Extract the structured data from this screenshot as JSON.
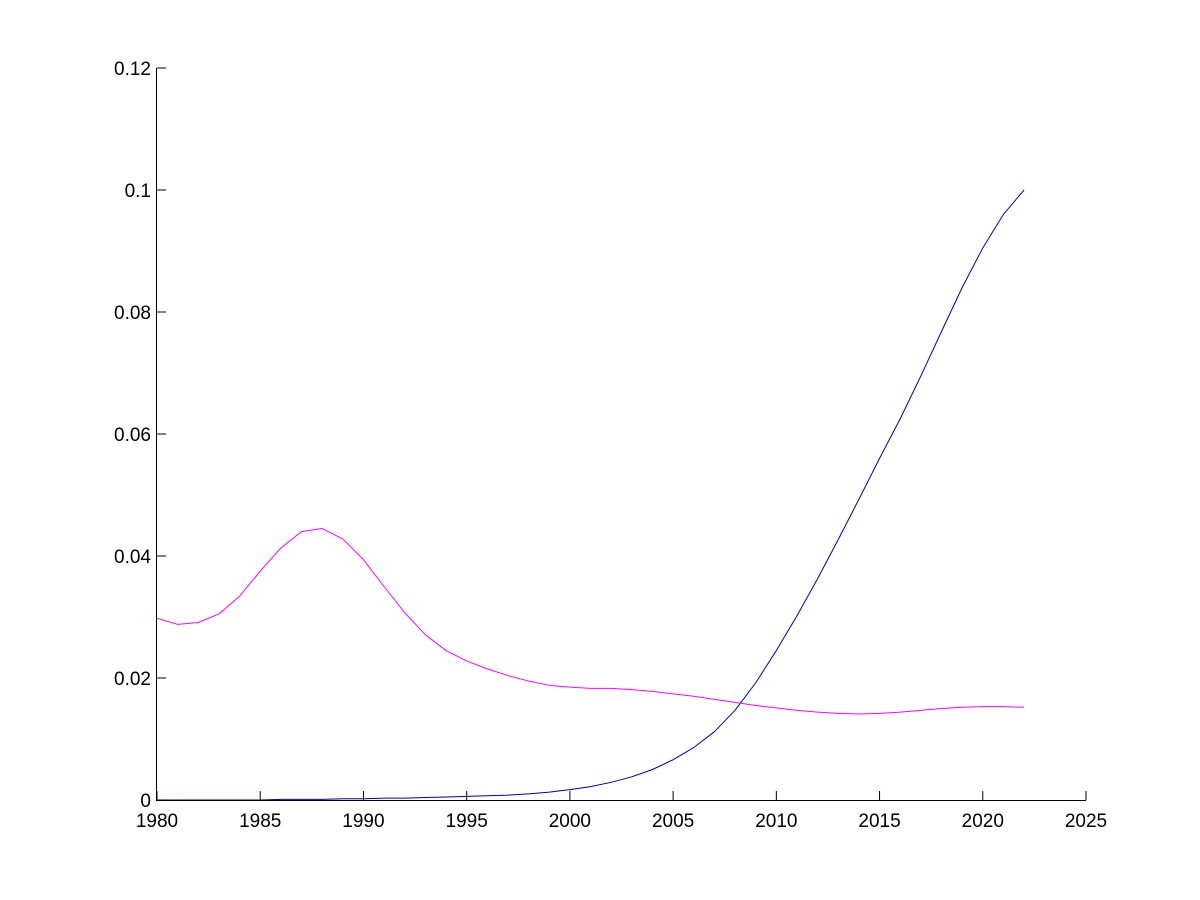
{
  "chart_data": {
    "type": "line",
    "title": "",
    "xlabel": "",
    "ylabel": "",
    "xlim": [
      1980,
      2025
    ],
    "ylim": [
      0,
      0.12
    ],
    "grid": false,
    "legend": false,
    "box": false,
    "x_ticks": [
      1980,
      1985,
      1990,
      1995,
      2000,
      2005,
      2010,
      2015,
      2020,
      2025
    ],
    "x_tick_labels": [
      "1980",
      "1985",
      "1990",
      "1995",
      "2000",
      "2005",
      "2010",
      "2015",
      "2020",
      "2025"
    ],
    "y_ticks": [
      0,
      0.02,
      0.04,
      0.06,
      0.08,
      0.1,
      0.12
    ],
    "y_tick_labels": [
      "0",
      "0.02",
      "0.04",
      "0.06",
      "0.08",
      "0.1",
      "0.12"
    ],
    "series": [
      {
        "color": "#0000aa",
        "x": [
          1980,
          1981,
          1982,
          1983,
          1984,
          1985,
          1986,
          1987,
          1988,
          1989,
          1990,
          1991,
          1992,
          1993,
          1994,
          1995,
          1996,
          1997,
          1998,
          1999,
          2000,
          2001,
          2002,
          2003,
          2004,
          2005,
          2006,
          2007,
          2008,
          2009,
          2010,
          2011,
          2012,
          2013,
          2014,
          2015,
          2016,
          2017,
          2018,
          2019,
          2020,
          2021,
          2022
        ],
        "y": [
          0.0,
          0.0,
          0.0,
          0.0,
          0.0,
          0.0,
          0.0001,
          0.0001,
          0.0001,
          0.0002,
          0.0002,
          0.0003,
          0.0003,
          0.0004,
          0.0005,
          0.0006,
          0.0007,
          0.0008,
          0.001,
          0.0013,
          0.0017,
          0.0022,
          0.0029,
          0.0038,
          0.005,
          0.0066,
          0.0086,
          0.0112,
          0.0147,
          0.0192,
          0.0245,
          0.0302,
          0.0363,
          0.0427,
          0.0493,
          0.056,
          0.0625,
          0.0695,
          0.0768,
          0.084,
          0.0905,
          0.096,
          0.1
        ]
      },
      {
        "color": "#ff00ff",
        "x": [
          1980,
          1981,
          1982,
          1983,
          1984,
          1985,
          1986,
          1987,
          1988,
          1989,
          1990,
          1991,
          1992,
          1993,
          1994,
          1995,
          1996,
          1997,
          1998,
          1999,
          2000,
          2001,
          2002,
          2003,
          2004,
          2005,
          2006,
          2007,
          2008,
          2009,
          2010,
          2011,
          2012,
          2013,
          2014,
          2015,
          2016,
          2017,
          2018,
          2019,
          2020,
          2021,
          2022
        ],
        "y": [
          0.0298,
          0.0288,
          0.0291,
          0.0305,
          0.0334,
          0.0375,
          0.0413,
          0.044,
          0.0445,
          0.0428,
          0.0394,
          0.035,
          0.0307,
          0.0271,
          0.0245,
          0.0228,
          0.0215,
          0.0204,
          0.0195,
          0.0188,
          0.0185,
          0.0183,
          0.0183,
          0.0181,
          0.0178,
          0.0174,
          0.017,
          0.0165,
          0.016,
          0.0155,
          0.0151,
          0.0147,
          0.0144,
          0.0142,
          0.0141,
          0.0142,
          0.0144,
          0.0147,
          0.015,
          0.0152,
          0.0153,
          0.0153,
          0.0152
        ]
      }
    ]
  }
}
